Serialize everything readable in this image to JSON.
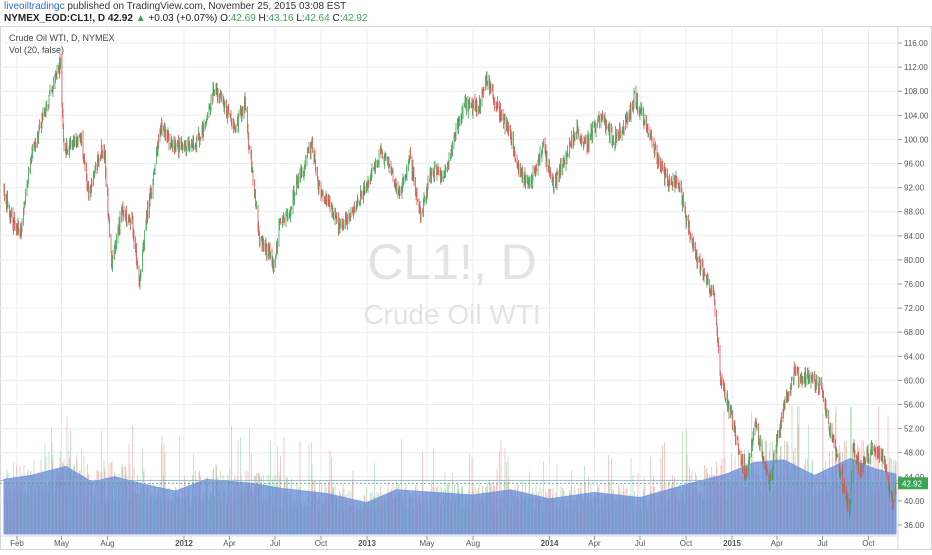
{
  "header": {
    "author": "liveoiltradingc",
    "published_text": " published on TradingView.com, November 25, 2015 03:08 EST",
    "symbol_line": "NYMEX_EOD:CL1!, D 42.92",
    "change_arrow": "▲",
    "change": "+0.03 (+0.07%)",
    "o_label": "O:",
    "o_value": "42.69",
    "h_label": "H:",
    "h_value": "43.16",
    "l_label": "L:",
    "l_value": "42.64",
    "c_label": "C:",
    "c_value": "42.92"
  },
  "pane": {
    "series_title": "Crude Oil WTI, D, NYMEX",
    "indicator_title": "Vol (20, false)",
    "watermark_symbol": "CL1!, D",
    "watermark_name": "Crude Oil WTI",
    "last_price_tag": "42.92"
  },
  "colors": {
    "up": "#3aa655",
    "down": "#d9534f",
    "volume": "#5f87d4",
    "volume_ma": "#7a9be0",
    "watermark": "#e3e3e3",
    "grid": "#ececec",
    "last_price": "#3aa655"
  },
  "chart_data": {
    "type": "candlestick",
    "y_ticks": [
      "116.00",
      "112.00",
      "108.00",
      "104.00",
      "100.00",
      "96.00",
      "92.00",
      "88.00",
      "84.00",
      "80.00",
      "76.00",
      "72.00",
      "68.00",
      "64.00",
      "60.00",
      "56.00",
      "52.00",
      "48.00",
      "44.00",
      "40.00",
      "36.00"
    ],
    "ylim": [
      34.5,
      117.5
    ],
    "x_ticks": [
      "Feb",
      "May",
      "Aug",
      "2012",
      "Apr",
      "Jul",
      "Oct",
      "2013",
      "May",
      "Aug",
      "2014",
      "Apr",
      "Jul",
      "Oct",
      "2015",
      "Apr",
      "Jul",
      "Oct"
    ],
    "x_tick_dates": [
      "2011-02-01",
      "2011-05-01",
      "2011-08-01",
      "2012-01-01",
      "2012-04-01",
      "2012-07-01",
      "2012-10-01",
      "2013-01-01",
      "2013-05-01",
      "2013-08-01",
      "2014-01-01",
      "2014-04-01",
      "2014-07-01",
      "2014-10-01",
      "2015-01-01",
      "2015-04-01",
      "2015-07-01",
      "2015-10-01"
    ],
    "x_range": [
      "2011-01-06",
      "2015-11-25"
    ],
    "close_path": [
      [
        "2011-01-06",
        91
      ],
      [
        "2011-01-25",
        86
      ],
      [
        "2011-02-10",
        85
      ],
      [
        "2011-02-28",
        97
      ],
      [
        "2011-03-15",
        101
      ],
      [
        "2011-04-10",
        108
      ],
      [
        "2011-04-29",
        113
      ],
      [
        "2011-05-06",
        98
      ],
      [
        "2011-05-20",
        99
      ],
      [
        "2011-06-10",
        100
      ],
      [
        "2011-06-24",
        91
      ],
      [
        "2011-07-10",
        96
      ],
      [
        "2011-07-25",
        99
      ],
      [
        "2011-08-09",
        79
      ],
      [
        "2011-08-30",
        88
      ],
      [
        "2011-09-20",
        86
      ],
      [
        "2011-10-04",
        76
      ],
      [
        "2011-10-20",
        88
      ],
      [
        "2011-11-16",
        102
      ],
      [
        "2011-12-10",
        99
      ],
      [
        "2011-12-31",
        99
      ],
      [
        "2012-01-20",
        99
      ],
      [
        "2012-02-15",
        102
      ],
      [
        "2012-03-01",
        109
      ],
      [
        "2012-03-20",
        106
      ],
      [
        "2012-04-10",
        102
      ],
      [
        "2012-05-01",
        106
      ],
      [
        "2012-05-20",
        92
      ],
      [
        "2012-06-01",
        83
      ],
      [
        "2012-06-20",
        81
      ],
      [
        "2012-06-28",
        78
      ],
      [
        "2012-07-10",
        86
      ],
      [
        "2012-07-31",
        88
      ],
      [
        "2012-08-14",
        93
      ],
      [
        "2012-09-14",
        99
      ],
      [
        "2012-09-25",
        92
      ],
      [
        "2012-10-15",
        90
      ],
      [
        "2012-11-07",
        85
      ],
      [
        "2012-11-30",
        88
      ],
      [
        "2012-12-31",
        92
      ],
      [
        "2013-01-30",
        98
      ],
      [
        "2013-02-20",
        95
      ],
      [
        "2013-03-05",
        90
      ],
      [
        "2013-03-28",
        97
      ],
      [
        "2013-04-18",
        87
      ],
      [
        "2013-05-10",
        95
      ],
      [
        "2013-06-05",
        94
      ],
      [
        "2013-07-15",
        106
      ],
      [
        "2013-08-10",
        105
      ],
      [
        "2013-08-28",
        110
      ],
      [
        "2013-09-15",
        106
      ],
      [
        "2013-10-15",
        101
      ],
      [
        "2013-11-05",
        94
      ],
      [
        "2013-11-25",
        93
      ],
      [
        "2013-12-20",
        99
      ],
      [
        "2014-01-09",
        92
      ],
      [
        "2014-01-31",
        97
      ],
      [
        "2014-02-25",
        102
      ],
      [
        "2014-03-15",
        99
      ],
      [
        "2014-04-15",
        104
      ],
      [
        "2014-05-10",
        100
      ],
      [
        "2014-06-05",
        103
      ],
      [
        "2014-06-20",
        107
      ],
      [
        "2014-07-10",
        103
      ],
      [
        "2014-08-05",
        97
      ],
      [
        "2014-08-25",
        93
      ],
      [
        "2014-09-15",
        93
      ],
      [
        "2014-10-15",
        82
      ],
      [
        "2014-11-05",
        78
      ],
      [
        "2014-11-25",
        74
      ],
      [
        "2014-12-10",
        60
      ],
      [
        "2014-12-31",
        54
      ],
      [
        "2015-01-28",
        44
      ],
      [
        "2015-02-17",
        53
      ],
      [
        "2015-03-17",
        43
      ],
      [
        "2015-04-15",
        56
      ],
      [
        "2015-05-06",
        61
      ],
      [
        "2015-06-10",
        60
      ],
      [
        "2015-06-30",
        59
      ],
      [
        "2015-07-15",
        52
      ],
      [
        "2015-08-05",
        45
      ],
      [
        "2015-08-24",
        38
      ],
      [
        "2015-08-31",
        49
      ],
      [
        "2015-09-15",
        45
      ],
      [
        "2015-10-09",
        49
      ],
      [
        "2015-10-31",
        47
      ],
      [
        "2015-11-18",
        40
      ],
      [
        "2015-11-25",
        42.92
      ]
    ],
    "volume_ma_path": [
      [
        "2011-01-06",
        0.42
      ],
      [
        "2011-03-01",
        0.45
      ],
      [
        "2011-05-10",
        0.52
      ],
      [
        "2011-07-01",
        0.4
      ],
      [
        "2011-08-15",
        0.44
      ],
      [
        "2011-10-15",
        0.38
      ],
      [
        "2011-12-15",
        0.33
      ],
      [
        "2012-02-15",
        0.42
      ],
      [
        "2012-05-15",
        0.39
      ],
      [
        "2012-07-15",
        0.35
      ],
      [
        "2012-10-15",
        0.31
      ],
      [
        "2012-12-31",
        0.24
      ],
      [
        "2013-03-01",
        0.34
      ],
      [
        "2013-05-15",
        0.32
      ],
      [
        "2013-08-01",
        0.3
      ],
      [
        "2013-10-15",
        0.34
      ],
      [
        "2014-01-01",
        0.27
      ],
      [
        "2014-04-01",
        0.32
      ],
      [
        "2014-07-01",
        0.28
      ],
      [
        "2014-10-01",
        0.38
      ],
      [
        "2014-12-20",
        0.46
      ],
      [
        "2015-02-15",
        0.55
      ],
      [
        "2015-04-15",
        0.57
      ],
      [
        "2015-06-15",
        0.45
      ],
      [
        "2015-08-25",
        0.58
      ],
      [
        "2015-10-15",
        0.5
      ],
      [
        "2015-11-25",
        0.46
      ]
    ],
    "volume_ma_last": 43.4,
    "volume_note": "volume shown relative to pane height, 0 to 1"
  }
}
